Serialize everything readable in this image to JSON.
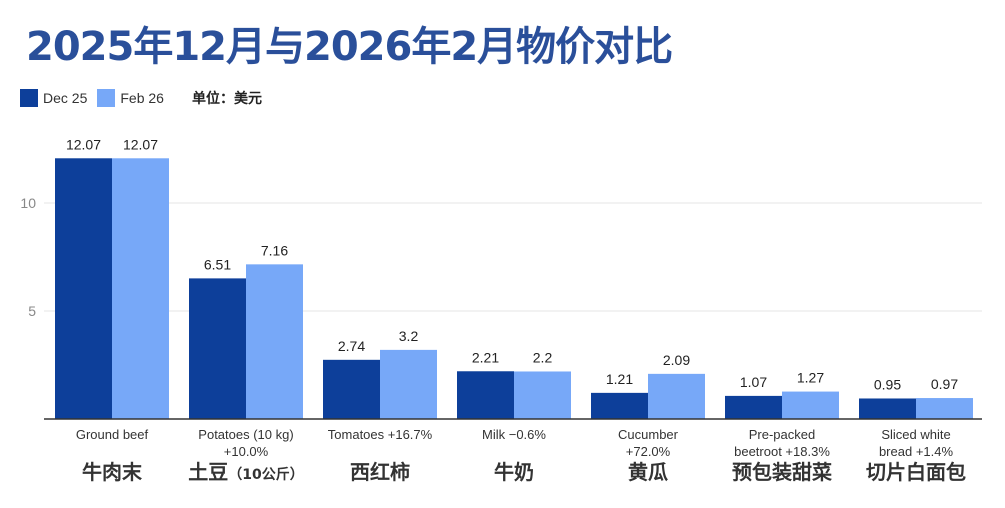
{
  "title": "2025年12月与2026年2月物价对比",
  "legend": {
    "unit": "单位：美元"
  },
  "chart_data": {
    "type": "bar",
    "title": "2025年12月与2026年2月物价对比",
    "categories": [
      {
        "en": [
          "Ground beef"
        ],
        "zh": "牛肉末",
        "zh_note": ""
      },
      {
        "en": [
          "Potatoes (10 kg)",
          "+10.0%"
        ],
        "zh": "土豆",
        "zh_note": "（10公斤）"
      },
      {
        "en": [
          "Tomatoes +16.7%"
        ],
        "zh": "西红柿",
        "zh_note": ""
      },
      {
        "en": [
          "Milk −0.6%"
        ],
        "zh": "牛奶",
        "zh_note": ""
      },
      {
        "en": [
          "Cucumber",
          "+72.0%"
        ],
        "zh": "黄瓜",
        "zh_note": ""
      },
      {
        "en": [
          "Pre-packed",
          "beetroot +18.3%"
        ],
        "zh": "预包装甜菜",
        "zh_note": ""
      },
      {
        "en": [
          "Sliced white",
          "bread +1.4%"
        ],
        "zh": "切片白面包",
        "zh_note": ""
      }
    ],
    "series": [
      {
        "name": "Dec 25",
        "color": "#0d3f9a",
        "values": [
          12.07,
          6.51,
          2.74,
          2.21,
          1.21,
          1.07,
          0.95
        ],
        "labels": [
          "12.07",
          "6.51",
          "2.74",
          "2.21",
          "1.21",
          "1.07",
          "0.95"
        ]
      },
      {
        "name": "Feb 26",
        "color": "#77a8f8",
        "values": [
          12.07,
          7.16,
          3.2,
          2.2,
          2.09,
          1.27,
          0.97
        ],
        "labels": [
          "12.07",
          "7.16",
          "3.2",
          "2.2",
          "2.09",
          "1.27",
          "0.97"
        ]
      }
    ],
    "yticks": [
      "5",
      "10"
    ],
    "ylim": [
      0,
      13.5
    ],
    "grid": true,
    "legend_position": "top-left"
  }
}
